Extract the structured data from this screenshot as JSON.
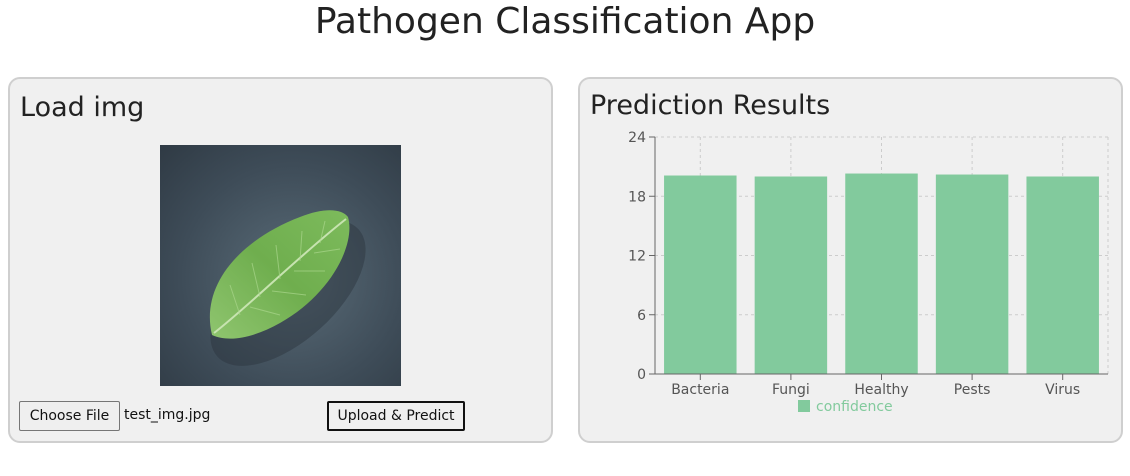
{
  "app": {
    "title": "Pathogen Classification App"
  },
  "load_panel": {
    "title": "Load img",
    "image_description": "green leaf on dark gray background",
    "choose_file_label": "Choose File",
    "file_name": "test_img.jpg",
    "upload_label": "Upload & Predict"
  },
  "results_panel": {
    "title": "Prediction Results"
  },
  "colors": {
    "bar": "#82ca9d",
    "grid": "#cccccc",
    "axis": "#666666"
  },
  "chart_data": {
    "type": "bar",
    "categories": [
      "Bacteria",
      "Fungi",
      "Healthy",
      "Pests",
      "Virus"
    ],
    "series": [
      {
        "name": "confidence",
        "values": [
          20.1,
          20.0,
          20.3,
          20.2,
          20.0
        ]
      }
    ],
    "ylim": [
      0,
      24
    ],
    "yticks": [
      0,
      6,
      12,
      18,
      24
    ],
    "grid": true,
    "legend": "bottom"
  }
}
